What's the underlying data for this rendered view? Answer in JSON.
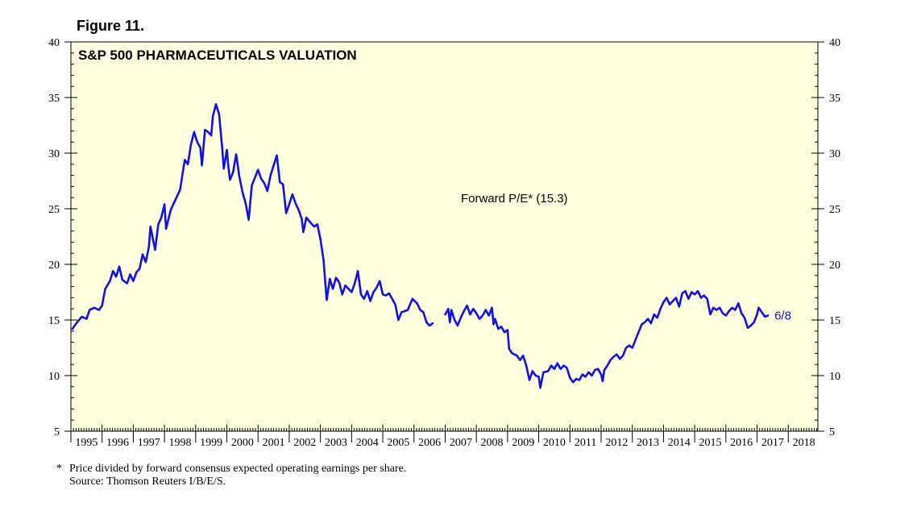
{
  "figure_label": "Figure 11.",
  "footnote": {
    "marker": "*",
    "line1": "Price divided by forward consensus expected operating earnings per share.",
    "line2": "Source: Thomson Reuters I/B/E/S."
  },
  "colors": {
    "plot_background": "#ffffe0",
    "series_line": "#1010e8",
    "axis": "#000000"
  },
  "chart_data": {
    "type": "line",
    "title": "S&P 500 PHARMACEUTICALS VALUATION",
    "annotation": "Forward P/E* (15.3)",
    "end_label": "6/8",
    "xlabel": "",
    "ylabel": "",
    "xlim": [
      1995.0,
      2018.95
    ],
    "ylim": [
      5,
      40
    ],
    "y_ticks": [
      5,
      10,
      15,
      20,
      25,
      30,
      35,
      40
    ],
    "x_tick_labels": [
      "1995",
      "1996",
      "1997",
      "1998",
      "1999",
      "2000",
      "2001",
      "2002",
      "2003",
      "2004",
      "2005",
      "2006",
      "2007",
      "2008",
      "2009",
      "2010",
      "2011",
      "2012",
      "2013",
      "2014",
      "2015",
      "2016",
      "2017",
      "2018"
    ],
    "series": [
      {
        "name": "Forward P/E",
        "segments": [
          [
            [
              1995.05,
              14.2
            ],
            [
              1995.2,
              14.8
            ],
            [
              1995.35,
              15.3
            ],
            [
              1995.5,
              15.1
            ],
            [
              1995.6,
              15.9
            ],
            [
              1995.75,
              16.1
            ],
            [
              1995.9,
              15.9
            ],
            [
              1996.0,
              16.3
            ],
            [
              1996.1,
              17.8
            ],
            [
              1996.25,
              18.5
            ],
            [
              1996.35,
              19.4
            ],
            [
              1996.45,
              18.9
            ],
            [
              1996.55,
              19.8
            ],
            [
              1996.65,
              18.6
            ],
            [
              1996.8,
              18.3
            ],
            [
              1996.9,
              19.1
            ],
            [
              1997.0,
              18.5
            ],
            [
              1997.1,
              19.3
            ],
            [
              1997.2,
              19.6
            ],
            [
              1997.3,
              20.9
            ],
            [
              1997.4,
              20.2
            ],
            [
              1997.5,
              21.6
            ],
            [
              1997.55,
              23.4
            ],
            [
              1997.7,
              21.3
            ],
            [
              1997.8,
              23.6
            ],
            [
              1997.9,
              24.2
            ],
            [
              1998.0,
              25.4
            ],
            [
              1998.05,
              23.2
            ],
            [
              1998.2,
              24.9
            ],
            [
              1998.3,
              25.5
            ],
            [
              1998.4,
              26.1
            ],
            [
              1998.5,
              26.7
            ],
            [
              1998.6,
              28.5
            ],
            [
              1998.65,
              29.4
            ],
            [
              1998.75,
              29.0
            ],
            [
              1998.85,
              30.8
            ],
            [
              1998.95,
              31.9
            ],
            [
              1999.05,
              31.0
            ],
            [
              1999.15,
              30.5
            ],
            [
              1999.2,
              28.9
            ],
            [
              1999.3,
              32.1
            ],
            [
              1999.4,
              31.9
            ],
            [
              1999.5,
              31.6
            ],
            [
              1999.55,
              33.3
            ],
            [
              1999.65,
              34.4
            ],
            [
              1999.75,
              33.5
            ],
            [
              1999.85,
              30.5
            ],
            [
              1999.9,
              28.6
            ],
            [
              2000.0,
              30.3
            ],
            [
              2000.05,
              28.7
            ],
            [
              2000.1,
              27.6
            ],
            [
              2000.2,
              28.3
            ],
            [
              2000.3,
              29.9
            ],
            [
              2000.4,
              27.9
            ],
            [
              2000.5,
              26.5
            ],
            [
              2000.6,
              25.5
            ],
            [
              2000.7,
              24.0
            ],
            [
              2000.8,
              27.1
            ],
            [
              2000.9,
              27.8
            ],
            [
              2001.0,
              28.5
            ],
            [
              2001.1,
              27.7
            ],
            [
              2001.2,
              27.3
            ],
            [
              2001.3,
              26.6
            ],
            [
              2001.4,
              28.0
            ],
            [
              2001.5,
              28.9
            ],
            [
              2001.6,
              29.8
            ],
            [
              2001.7,
              27.4
            ],
            [
              2001.8,
              27.2
            ],
            [
              2001.9,
              24.6
            ],
            [
              2002.0,
              25.4
            ],
            [
              2002.1,
              26.3
            ],
            [
              2002.2,
              25.5
            ],
            [
              2002.3,
              24.9
            ],
            [
              2002.4,
              24.1
            ],
            [
              2002.45,
              22.9
            ],
            [
              2002.55,
              24.2
            ],
            [
              2002.7,
              23.7
            ],
            [
              2002.8,
              23.4
            ],
            [
              2002.9,
              23.6
            ],
            [
              2003.0,
              22.3
            ],
            [
              2003.1,
              20.4
            ],
            [
              2003.2,
              16.8
            ],
            [
              2003.3,
              18.7
            ],
            [
              2003.4,
              17.8
            ],
            [
              2003.5,
              18.8
            ],
            [
              2003.6,
              18.4
            ],
            [
              2003.7,
              17.3
            ],
            [
              2003.8,
              18.1
            ],
            [
              2003.9,
              17.8
            ],
            [
              2004.0,
              17.5
            ],
            [
              2004.1,
              18.3
            ],
            [
              2004.2,
              19.4
            ],
            [
              2004.3,
              17.3
            ],
            [
              2004.4,
              16.9
            ],
            [
              2004.5,
              17.6
            ],
            [
              2004.6,
              16.7
            ],
            [
              2004.7,
              17.5
            ],
            [
              2004.8,
              17.9
            ],
            [
              2004.9,
              18.5
            ],
            [
              2005.0,
              17.3
            ],
            [
              2005.1,
              17.2
            ],
            [
              2005.2,
              17.4
            ],
            [
              2005.3,
              16.9
            ],
            [
              2005.4,
              16.4
            ],
            [
              2005.5,
              15.0
            ],
            [
              2005.6,
              15.7
            ],
            [
              2005.7,
              15.8
            ],
            [
              2005.8,
              15.9
            ],
            [
              2005.95,
              16.9
            ],
            [
              2006.1,
              16.5
            ],
            [
              2006.2,
              15.9
            ],
            [
              2006.3,
              15.7
            ],
            [
              2006.4,
              14.8
            ],
            [
              2006.5,
              14.5
            ],
            [
              2006.6,
              14.7
            ]
          ],
          [
            [
              2007.0,
              15.5
            ],
            [
              2007.1,
              16.0
            ],
            [
              2007.15,
              14.8
            ],
            [
              2007.2,
              15.9
            ],
            [
              2007.3,
              15.0
            ],
            [
              2007.4,
              14.5
            ],
            [
              2007.5,
              15.2
            ],
            [
              2007.6,
              15.8
            ],
            [
              2007.7,
              16.3
            ],
            [
              2007.8,
              15.5
            ],
            [
              2007.9,
              16.0
            ],
            [
              2008.0,
              15.6
            ],
            [
              2008.1,
              15.1
            ],
            [
              2008.2,
              15.4
            ],
            [
              2008.3,
              15.9
            ],
            [
              2008.4,
              15.4
            ],
            [
              2008.5,
              16.1
            ],
            [
              2008.55,
              14.6
            ],
            [
              2008.6,
              15.1
            ],
            [
              2008.7,
              14.2
            ],
            [
              2008.8,
              14.4
            ],
            [
              2008.9,
              13.9
            ],
            [
              2009.0,
              14.1
            ],
            [
              2009.05,
              12.4
            ],
            [
              2009.15,
              12.0
            ],
            [
              2009.3,
              11.8
            ],
            [
              2009.4,
              11.4
            ],
            [
              2009.5,
              11.8
            ],
            [
              2009.6,
              10.9
            ],
            [
              2009.7,
              9.6
            ],
            [
              2009.8,
              10.4
            ],
            [
              2009.9,
              10.0
            ],
            [
              2010.0,
              9.9
            ],
            [
              2010.05,
              8.9
            ],
            [
              2010.15,
              10.3
            ],
            [
              2010.3,
              10.4
            ],
            [
              2010.4,
              10.9
            ],
            [
              2010.5,
              10.6
            ],
            [
              2010.6,
              11.1
            ],
            [
              2010.7,
              10.6
            ],
            [
              2010.8,
              10.9
            ],
            [
              2010.9,
              10.7
            ],
            [
              2011.0,
              9.8
            ],
            [
              2011.1,
              9.4
            ],
            [
              2011.2,
              9.7
            ],
            [
              2011.3,
              9.6
            ],
            [
              2011.4,
              10.1
            ],
            [
              2011.5,
              9.9
            ],
            [
              2011.6,
              10.3
            ],
            [
              2011.7,
              10.0
            ],
            [
              2011.8,
              10.5
            ],
            [
              2011.9,
              10.6
            ],
            [
              2012.0,
              10.1
            ],
            [
              2012.05,
              9.5
            ],
            [
              2012.1,
              10.5
            ],
            [
              2012.2,
              10.9
            ],
            [
              2012.3,
              11.4
            ],
            [
              2012.4,
              11.7
            ],
            [
              2012.5,
              11.9
            ],
            [
              2012.6,
              11.5
            ],
            [
              2012.7,
              11.8
            ],
            [
              2012.8,
              12.5
            ],
            [
              2012.9,
              12.7
            ],
            [
              2013.0,
              12.5
            ],
            [
              2013.1,
              13.2
            ],
            [
              2013.2,
              13.9
            ],
            [
              2013.3,
              14.6
            ],
            [
              2013.4,
              14.8
            ],
            [
              2013.5,
              15.1
            ],
            [
              2013.6,
              14.7
            ],
            [
              2013.7,
              15.5
            ],
            [
              2013.8,
              15.2
            ],
            [
              2013.9,
              16.0
            ],
            [
              2014.0,
              16.6
            ],
            [
              2014.1,
              17.0
            ],
            [
              2014.2,
              16.4
            ],
            [
              2014.3,
              16.7
            ],
            [
              2014.4,
              17.0
            ],
            [
              2014.5,
              16.2
            ],
            [
              2014.6,
              17.4
            ],
            [
              2014.7,
              17.6
            ],
            [
              2014.8,
              16.9
            ],
            [
              2014.9,
              17.5
            ],
            [
              2015.0,
              17.3
            ],
            [
              2015.1,
              17.6
            ],
            [
              2015.2,
              17.0
            ],
            [
              2015.3,
              17.2
            ],
            [
              2015.4,
              16.9
            ],
            [
              2015.5,
              15.5
            ],
            [
              2015.6,
              16.1
            ],
            [
              2015.7,
              15.9
            ],
            [
              2015.8,
              16.1
            ],
            [
              2015.9,
              15.6
            ],
            [
              2016.0,
              15.4
            ],
            [
              2016.1,
              15.8
            ],
            [
              2016.2,
              16.1
            ],
            [
              2016.3,
              15.9
            ],
            [
              2016.4,
              16.5
            ],
            [
              2016.5,
              15.6
            ],
            [
              2016.6,
              15.2
            ],
            [
              2016.7,
              14.3
            ],
            [
              2016.8,
              14.5
            ],
            [
              2016.9,
              14.8
            ],
            [
              2017.0,
              15.5
            ],
            [
              2017.05,
              16.1
            ],
            [
              2017.15,
              15.7
            ],
            [
              2017.25,
              15.3
            ],
            [
              2017.35,
              15.4
            ]
          ]
        ]
      }
    ]
  }
}
